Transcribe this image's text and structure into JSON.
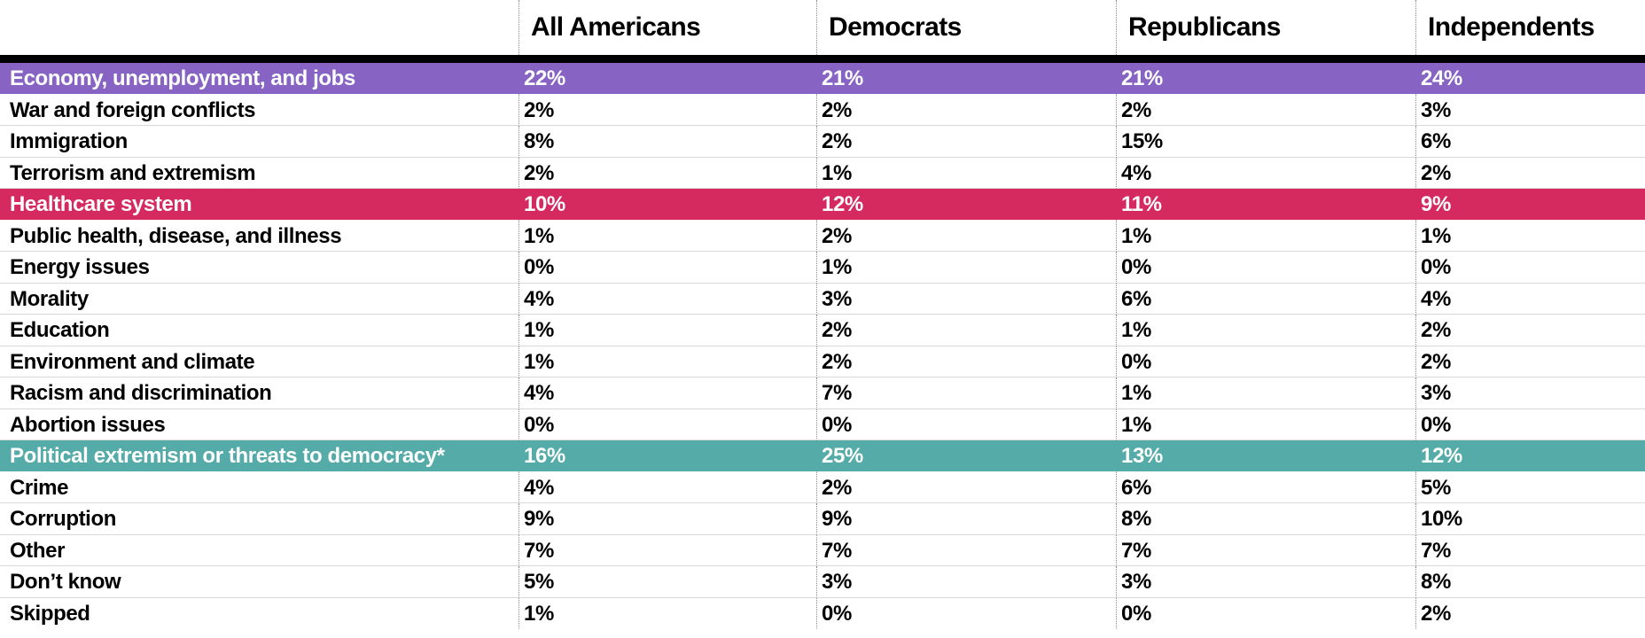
{
  "chart_data": {
    "type": "table",
    "columns": [
      "All Americans",
      "Democrats",
      "Republicans",
      "Independents"
    ],
    "rows": [
      {
        "label": "Economy, unemployment, and jobs",
        "values": [
          "22%",
          "21%",
          "21%",
          "24%"
        ],
        "highlight": "purple"
      },
      {
        "label": "War and foreign conflicts",
        "values": [
          "2%",
          "2%",
          "2%",
          "3%"
        ]
      },
      {
        "label": "Immigration",
        "values": [
          "8%",
          "2%",
          "15%",
          "6%"
        ]
      },
      {
        "label": "Terrorism and extremism",
        "values": [
          "2%",
          "1%",
          "4%",
          "2%"
        ]
      },
      {
        "label": "Healthcare system",
        "values": [
          "10%",
          "12%",
          "11%",
          "9%"
        ],
        "highlight": "pink"
      },
      {
        "label": "Public health, disease, and illness",
        "values": [
          "1%",
          "2%",
          "1%",
          "1%"
        ]
      },
      {
        "label": "Energy issues",
        "values": [
          "0%",
          "1%",
          "0%",
          "0%"
        ]
      },
      {
        "label": "Morality",
        "values": [
          "4%",
          "3%",
          "6%",
          "4%"
        ]
      },
      {
        "label": "Education",
        "values": [
          "1%",
          "2%",
          "1%",
          "2%"
        ]
      },
      {
        "label": "Environment and climate",
        "values": [
          "1%",
          "2%",
          "0%",
          "2%"
        ]
      },
      {
        "label": "Racism and discrimination",
        "values": [
          "4%",
          "7%",
          "1%",
          "3%"
        ]
      },
      {
        "label": "Abortion issues",
        "values": [
          "0%",
          "0%",
          "1%",
          "0%"
        ]
      },
      {
        "label": "Political extremism or threats to democracy*",
        "values": [
          "16%",
          "25%",
          "13%",
          "12%"
        ],
        "highlight": "teal"
      },
      {
        "label": "Crime",
        "values": [
          "4%",
          "2%",
          "6%",
          "5%"
        ]
      },
      {
        "label": "Corruption",
        "values": [
          "9%",
          "9%",
          "8%",
          "10%"
        ]
      },
      {
        "label": "Other",
        "values": [
          "7%",
          "7%",
          "7%",
          "7%"
        ]
      },
      {
        "label": "Don’t know",
        "values": [
          "5%",
          "3%",
          "3%",
          "8%"
        ]
      },
      {
        "label": "Skipped",
        "values": [
          "1%",
          "0%",
          "0%",
          "2%"
        ]
      }
    ],
    "highlight_colors": {
      "purple": "#8763c3",
      "pink": "#d52a60",
      "teal": "#54aba8"
    },
    "text_color": "#000000",
    "highlight_text_color": "#ffffff",
    "layout": "rows are survey issues, columns are party affiliation groups; three highlighted rows"
  }
}
